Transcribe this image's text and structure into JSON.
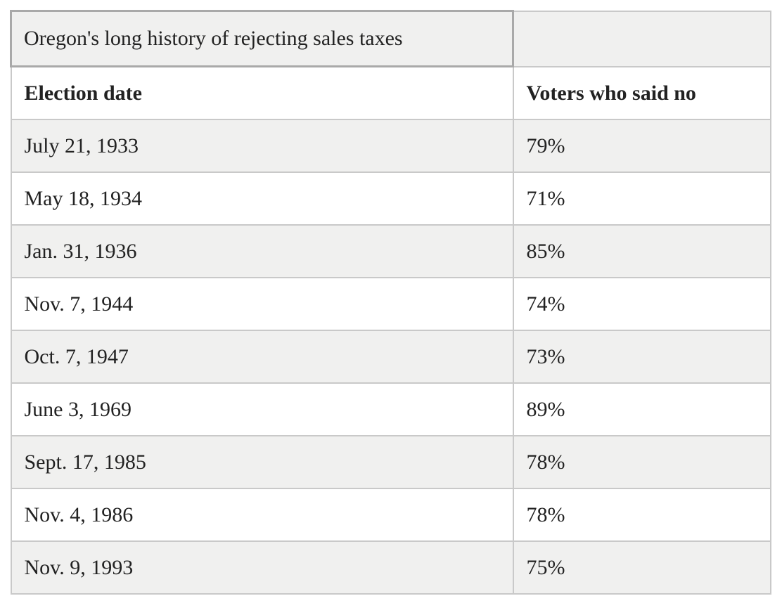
{
  "table": {
    "title": "Oregon's long history of rejecting sales taxes",
    "columns": [
      "Election date",
      "Voters who said no"
    ],
    "rows": [
      {
        "date": "July 21, 1933",
        "pct": "79%"
      },
      {
        "date": "May 18, 1934",
        "pct": "71%"
      },
      {
        "date": "Jan. 31, 1936",
        "pct": "85%"
      },
      {
        "date": "Nov. 7, 1944",
        "pct": "74%"
      },
      {
        "date": "Oct. 7, 1947",
        "pct": "73%"
      },
      {
        "date": "June 3, 1969",
        "pct": "89%"
      },
      {
        "date": "Sept. 17, 1985",
        "pct": "78%"
      },
      {
        "date": "Nov. 4, 1986",
        "pct": "78%"
      },
      {
        "date": "Nov. 9, 1993",
        "pct": "75%"
      }
    ],
    "colors": {
      "stripe_bg": "#f0f0ef",
      "row_bg": "#ffffff",
      "cell_border": "#c9c9c9",
      "title_cell_border": "#a9a9a9",
      "text": "#222222"
    }
  },
  "chart_data": {
    "type": "table",
    "title": "Oregon's long history of rejecting sales taxes",
    "columns": [
      "Election date",
      "Voters who said no"
    ],
    "categories": [
      "July 21, 1933",
      "May 18, 1934",
      "Jan. 31, 1936",
      "Nov. 7, 1944",
      "Oct. 7, 1947",
      "June 3, 1969",
      "Sept. 17, 1985",
      "Nov. 4, 1986",
      "Nov. 9, 1993"
    ],
    "values": [
      79,
      71,
      85,
      74,
      73,
      89,
      78,
      78,
      75
    ],
    "unit": "%",
    "layout_hints": "caption cell top-left with darker border; zebra striping starting with gray on first data row; two columns ~66%/34%"
  }
}
